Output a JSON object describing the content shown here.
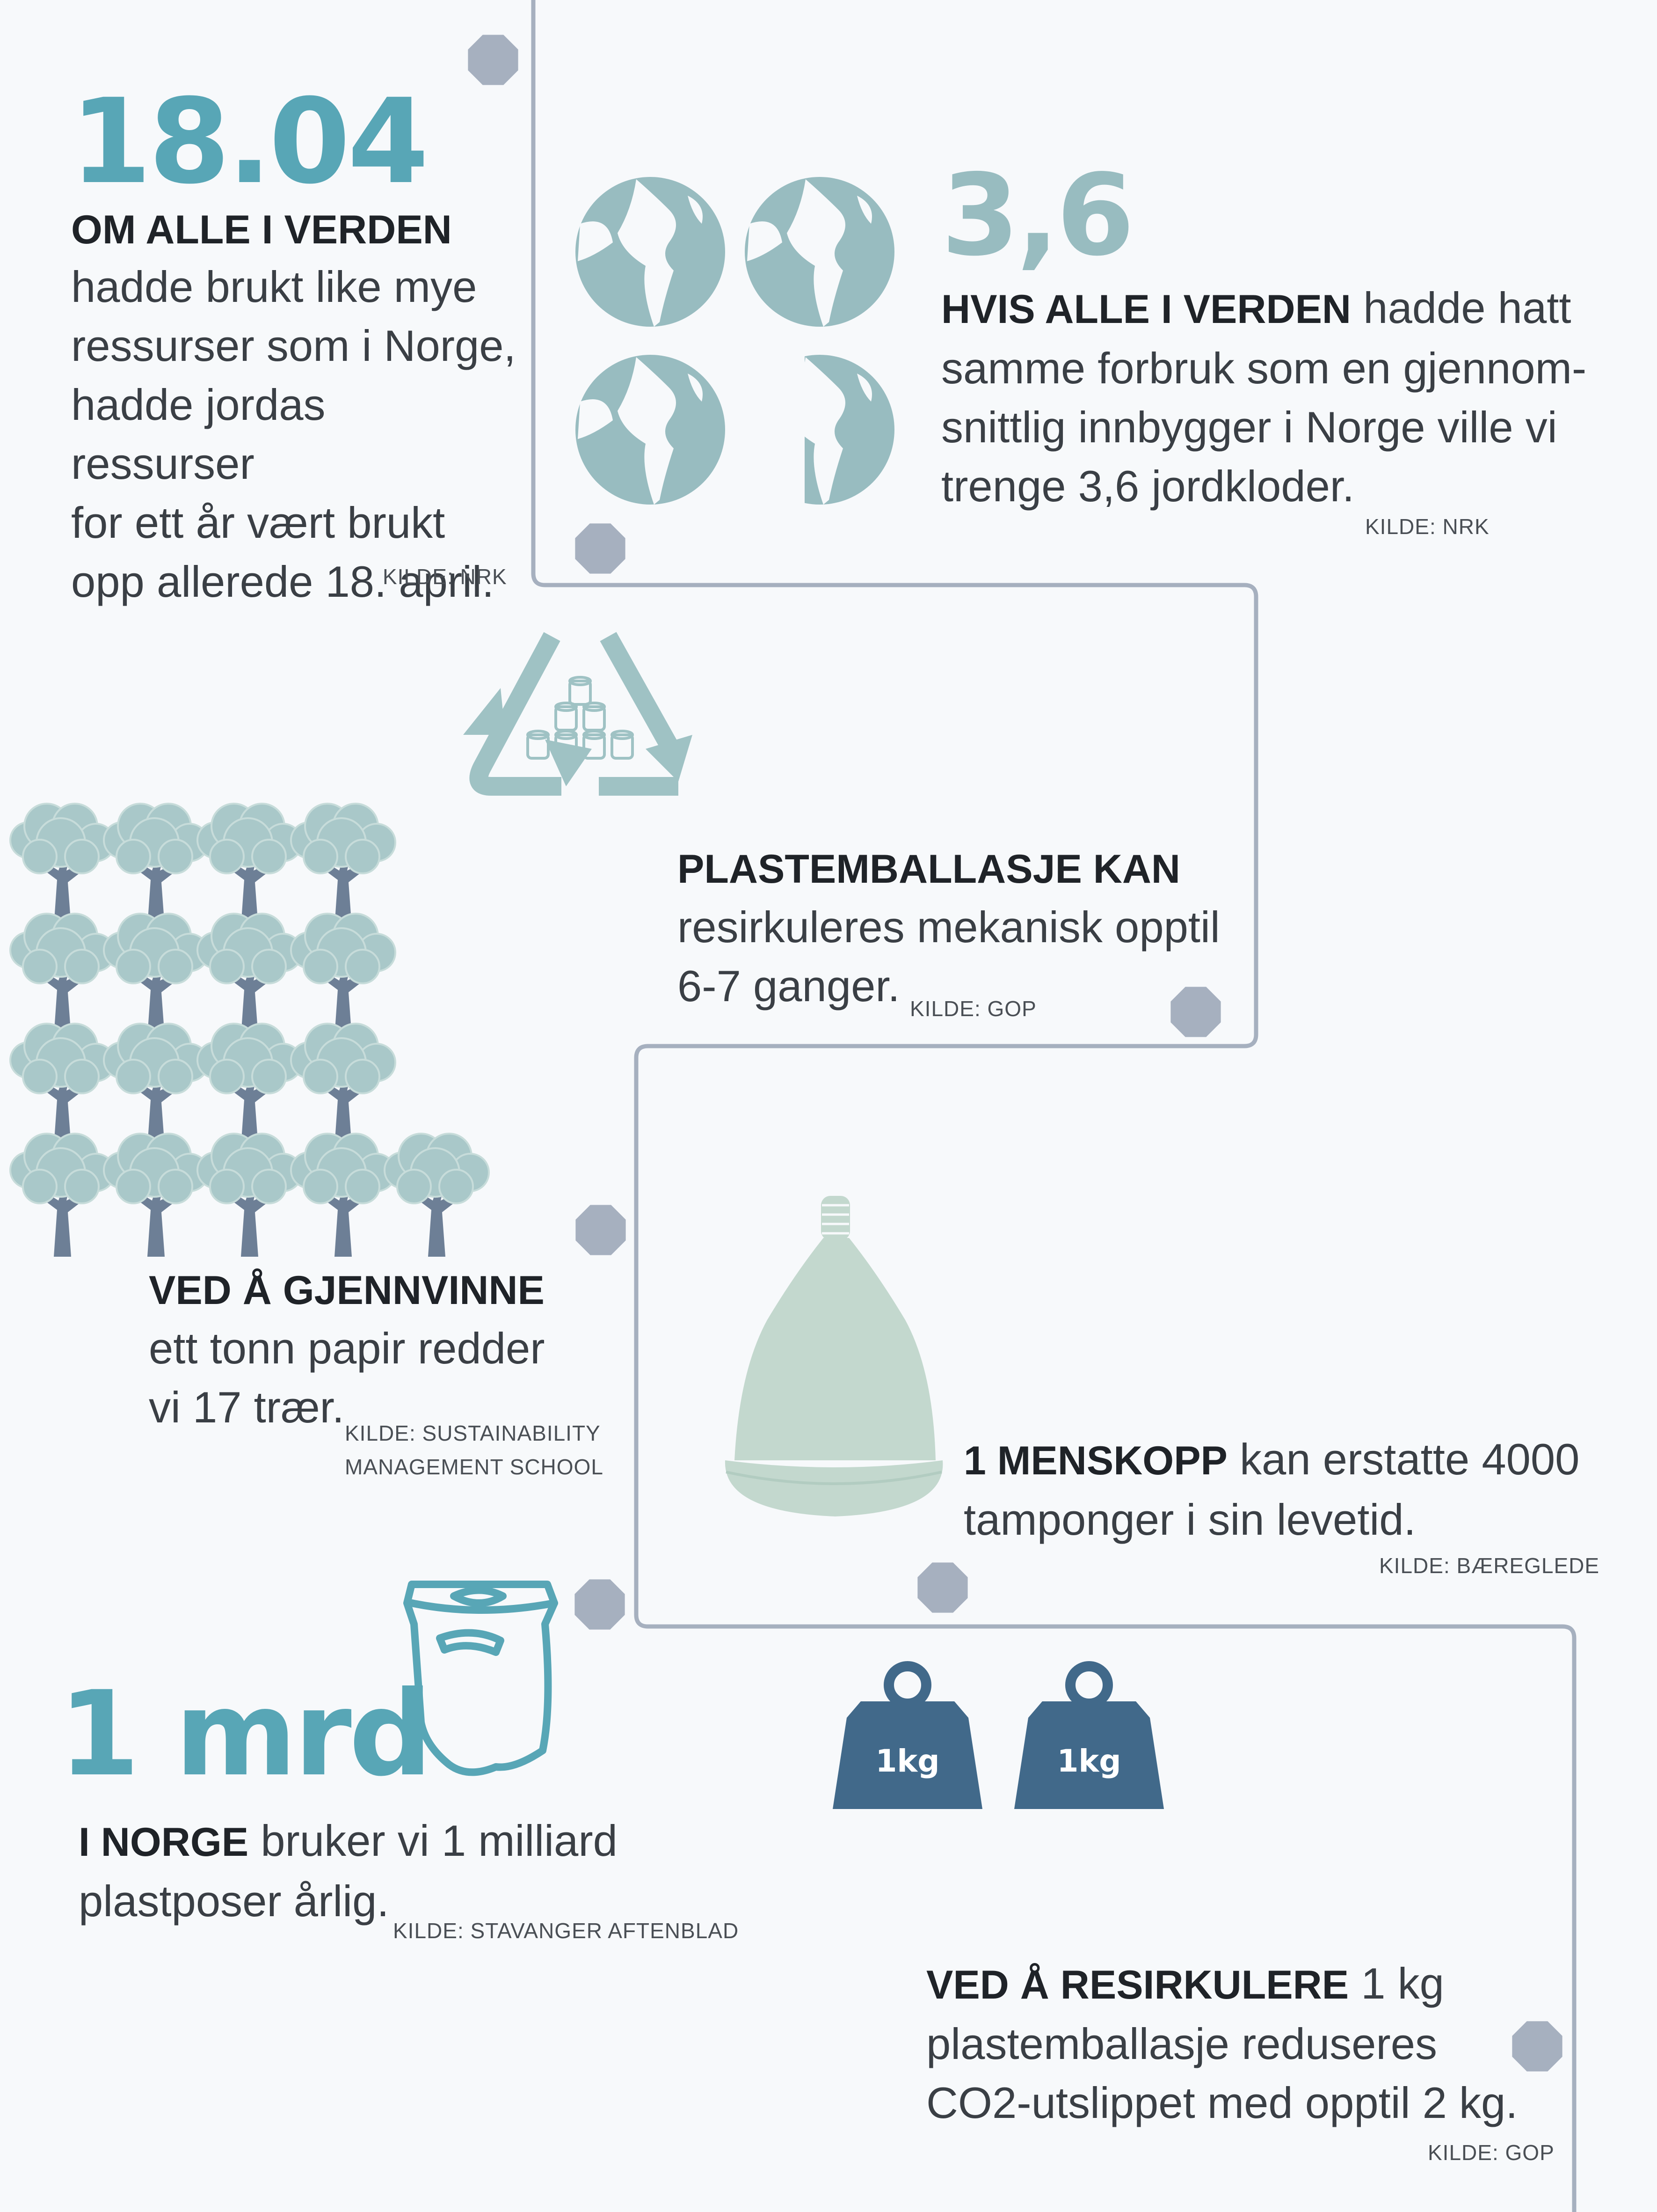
{
  "colors": {
    "background": "#f7f9fb",
    "accent_teal": "#58a6b6",
    "globe": "#98bcc0",
    "recycle": "#9fc2c4",
    "tree_canopy": "#a9c8c9",
    "tree_trunk": "#6d7f96",
    "cup": "#c3d8ce",
    "bag": "#58a6b6",
    "weight": "#41698a",
    "line": "#a6b0bf",
    "node": "#a6b0bf"
  },
  "facts": {
    "overshoot": {
      "number": "18.04",
      "heading": "OM ALLE I VERDEN",
      "lines": [
        "hadde brukt like mye",
        "ressurser som i Norge,",
        "hadde jordas ressurser",
        "for ett år vært brukt",
        "opp allerede 18. april."
      ],
      "source": "KILDE: NRK"
    },
    "earths": {
      "number": "3,6",
      "heading": "HVIS ALLE I VERDEN",
      "line1_rest": " hadde hatt",
      "lines": [
        "samme forbruk som en gjennom-",
        "snittlig innbygger i Norge ville vi",
        "trenge 3,6 jordkloder."
      ],
      "source": "KILDE: NRK",
      "icon": "globe-icon",
      "count": 3.6
    },
    "plastic": {
      "heading": "PLASTEMBALLASJE  KAN",
      "lines": [
        "resirkuleres mekanisk opptil",
        "6-7 ganger."
      ],
      "source": "KILDE: GOP",
      "icon": "recycle-icon"
    },
    "paper": {
      "heading": "VED Å GJENNVINNE",
      "lines": [
        "ett tonn papir redder",
        "vi 17 trær."
      ],
      "source_line1": "KILDE: SUSTAINABILITY",
      "source_line2": "MANAGEMENT SCHOOL",
      "icon": "tree-icon",
      "tree_count": 17
    },
    "cup": {
      "heading": "1 MENSKOPP",
      "line1_rest": " kan erstatte 4000",
      "lines": [
        "tamponger i sin levetid."
      ],
      "source": "KILDE: BÆREGLEDE",
      "icon": "menstrual-cup-icon"
    },
    "bags": {
      "number": "1 mrd",
      "heading": "I NORGE",
      "line1_rest": " bruker vi 1 milliard",
      "lines": [
        "plastposer årlig."
      ],
      "source": "KILDE: STAVANGER AFTENBLAD",
      "icon": "plastic-bag-icon"
    },
    "co2": {
      "heading": "VED Å RESIRKULERE",
      "line1_rest": " 1 kg",
      "lines": [
        "plastemballasje reduseres",
        "CO2-utslippet med opptil 2 kg."
      ],
      "source": "KILDE: GOP",
      "weight_label": "1kg",
      "icon": "weight-icon"
    }
  }
}
